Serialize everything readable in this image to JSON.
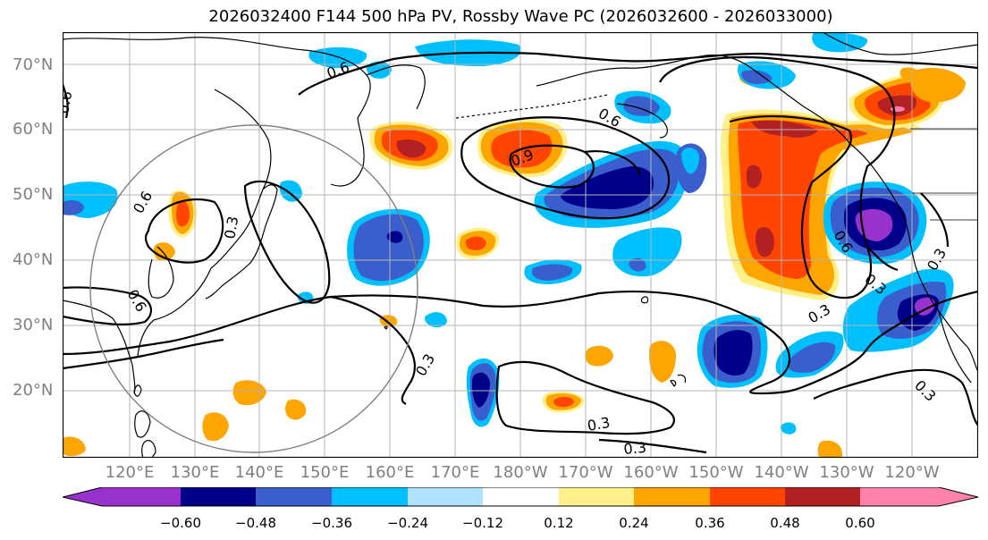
{
  "title": "2026032400 F144 500 hPa PV, Rossby Wave PC (2026032600 - 2026033000)",
  "lat_labels": [
    "70°N",
    "60°N",
    "50°N",
    "40°N",
    "30°N",
    "20°N"
  ],
  "lon_labels": [
    "120°E",
    "130°E",
    "140°E",
    "150°E",
    "160°E",
    "170°E",
    "180°W",
    "170°W",
    "160°W",
    "150°W",
    "140°W",
    "130°W",
    "120°W"
  ],
  "contour_labels": [
    "0.6",
    "0.6",
    "0.6",
    "0.9",
    "0.6",
    "0.6",
    "0.6",
    "0.3",
    "0.3",
    "0.3",
    "0.3",
    "0.3",
    "0.3",
    "0.3",
    "0.3"
  ],
  "colorbar": {
    "ticks": [
      "−0.60",
      "−0.48",
      "−0.36",
      "−0.24",
      "−0.12",
      "0.12",
      "0.24",
      "0.36",
      "0.48",
      "0.60"
    ],
    "colors": [
      "#9932cc",
      "#00008b",
      "#3a5fcd",
      "#00bfff",
      "#b0e2ff",
      "#ffffff",
      "#fff08a",
      "#ffa500",
      "#ff4500",
      "#b22222",
      "#ff82ab",
      "#ff82ab"
    ]
  },
  "palette": {
    "purple": "#9932cc",
    "navy": "#00008b",
    "royal": "#3a5fcd",
    "sky": "#00bfff",
    "pale": "#b0e2ff",
    "yellow": "#fff08a",
    "orange": "#ffa500",
    "redorange": "#ff4500",
    "darkred": "#b22222",
    "pink": "#ff82ab"
  }
}
